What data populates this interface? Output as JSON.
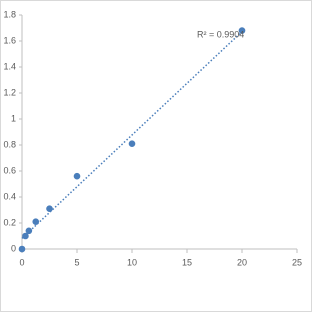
{
  "chart_data": {
    "type": "scatter",
    "annotation": "R² = 0.9904",
    "x": [
      0,
      0.3125,
      0.625,
      1.25,
      2.5,
      5,
      10,
      20
    ],
    "series": [
      {
        "color": "#4a7ebb",
        "values": [
          0.0,
          0.1,
          0.14,
          0.21,
          0.31,
          0.56,
          0.81,
          1.68
        ]
      }
    ],
    "trendline": "linear",
    "xlim": [
      0,
      25
    ],
    "xticks": [
      0,
      5,
      10,
      15,
      20,
      25
    ],
    "ylim": [
      0,
      1.8
    ],
    "yticks": [
      0,
      0.2,
      0.4,
      0.6,
      0.8,
      1,
      1.2,
      1.4,
      1.6,
      1.8
    ],
    "grid": false
  }
}
